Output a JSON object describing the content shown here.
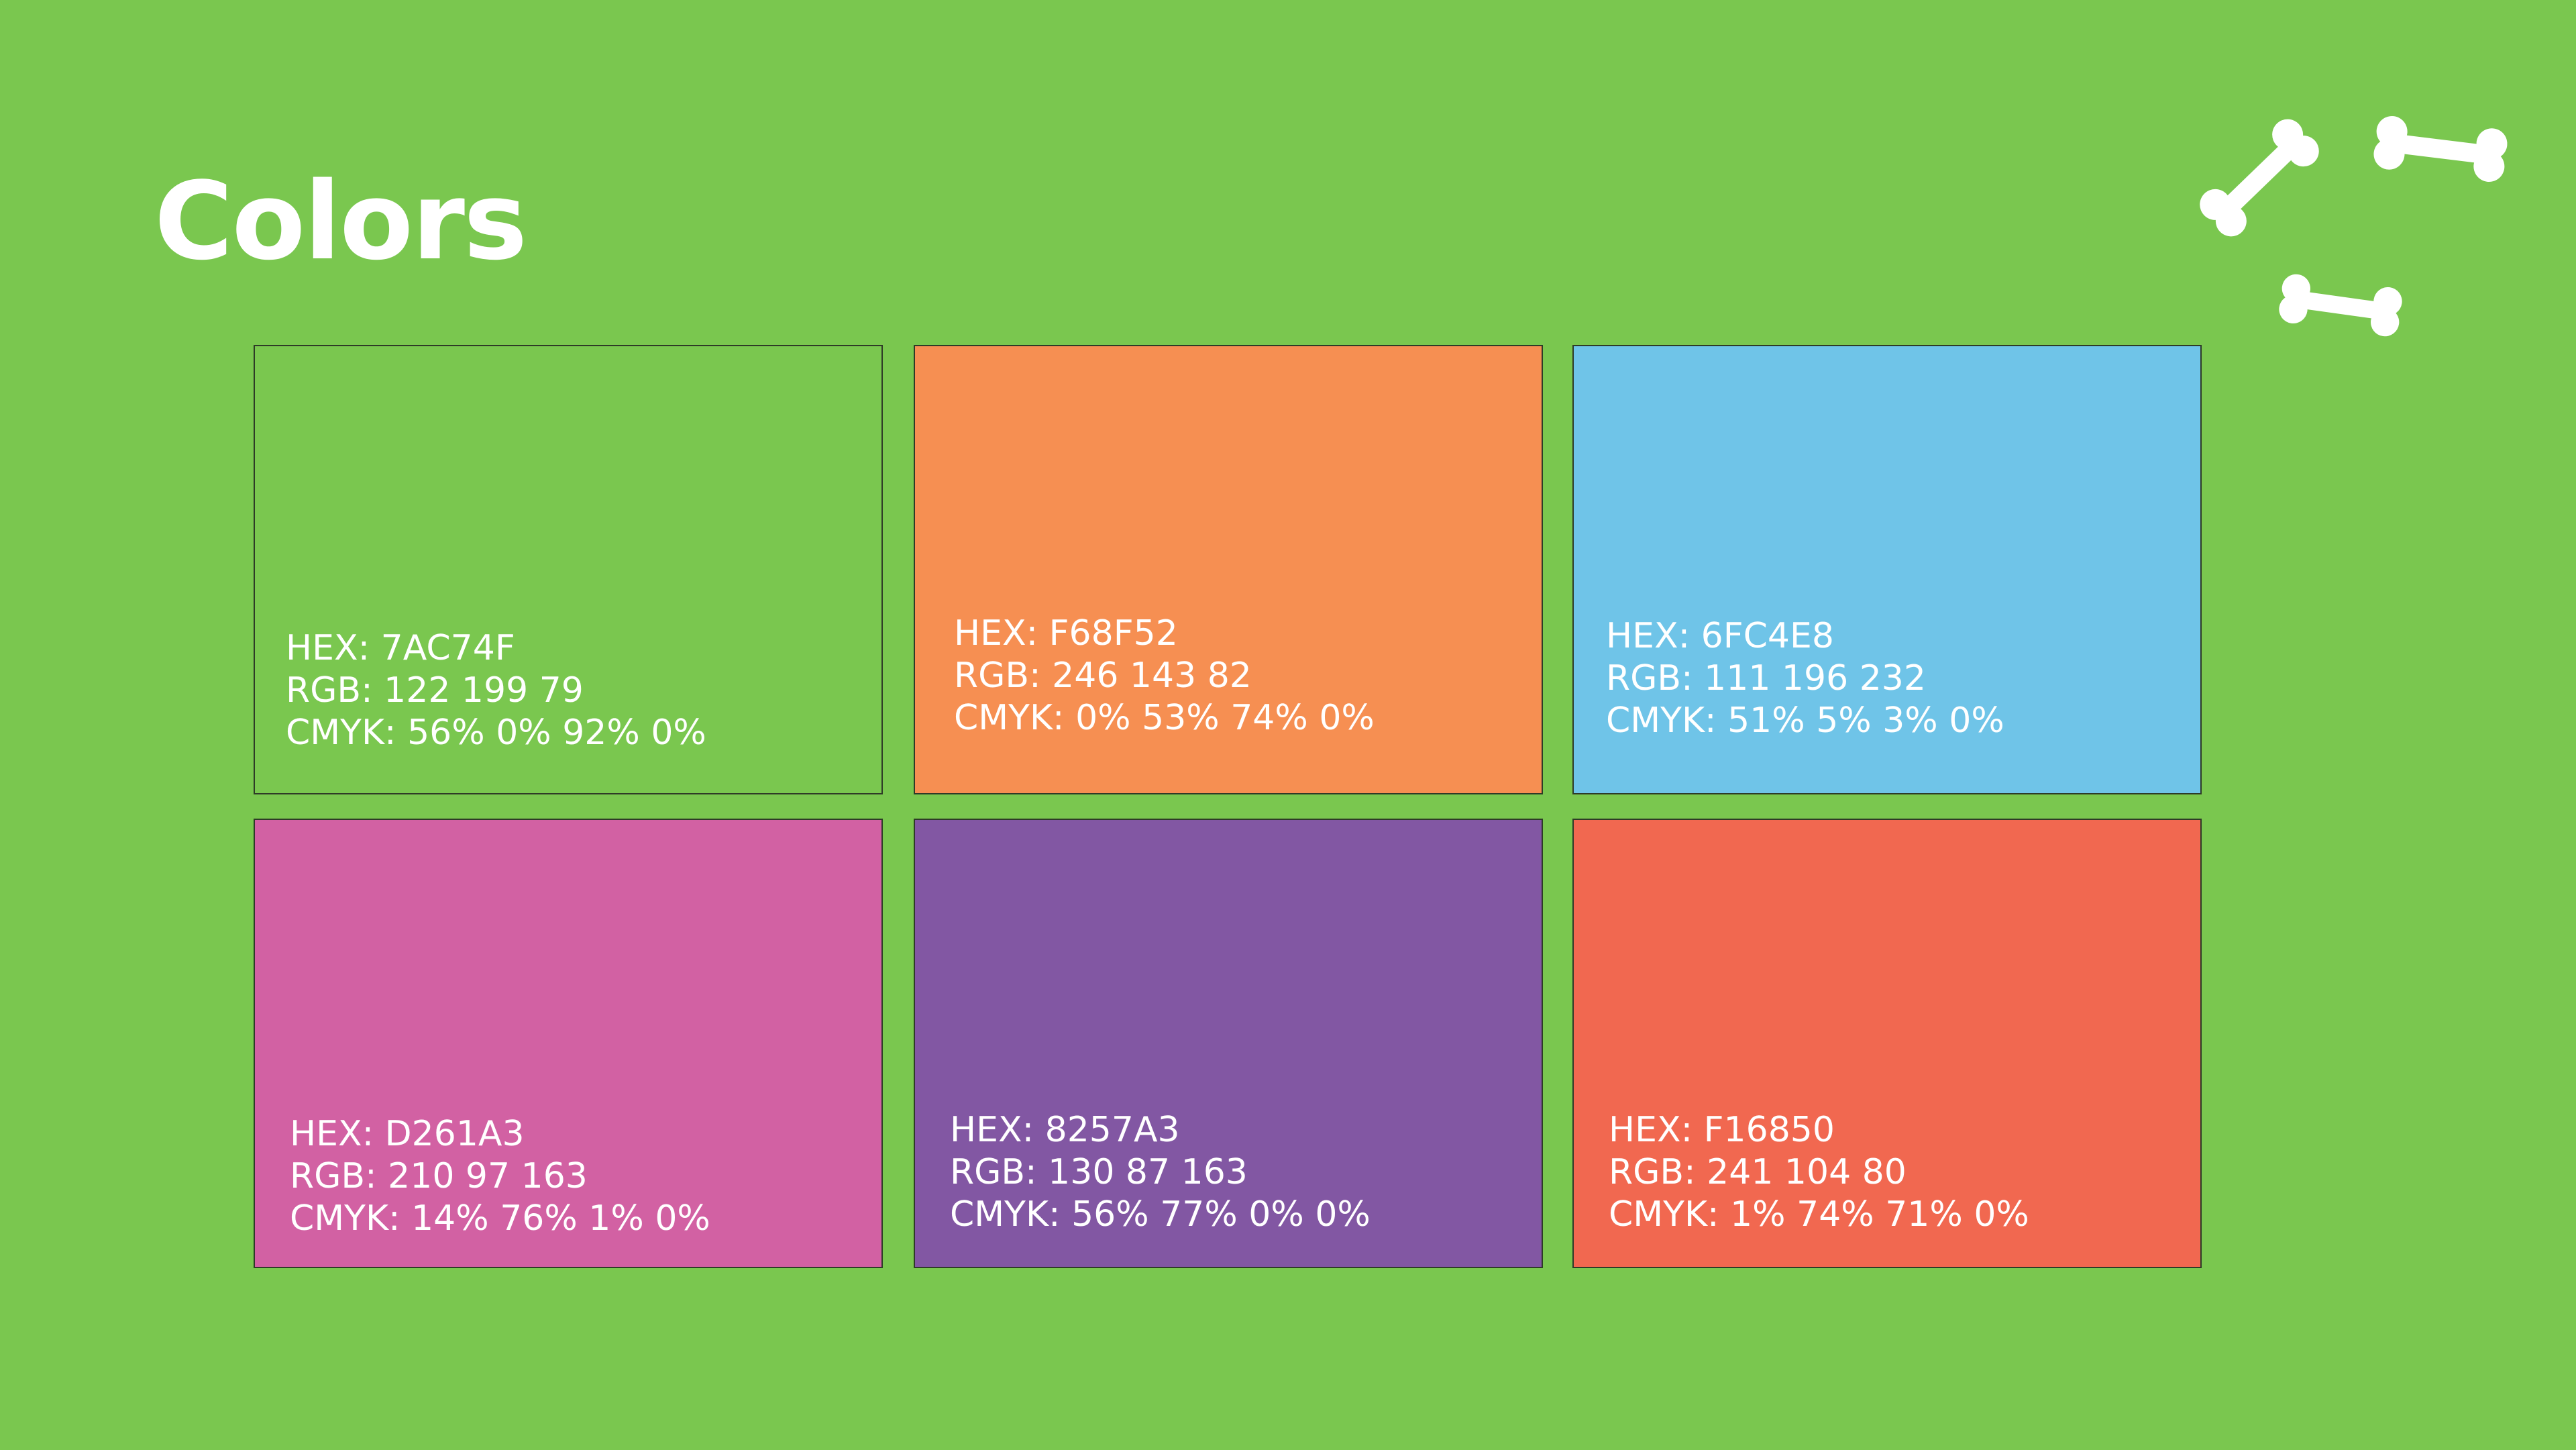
{
  "page_title": "Colors",
  "swatches": [
    {
      "hex": "#7AC74F",
      "hex_label": "HEX: 7AC74F",
      "rgb_label": "RGB: 122 199 79",
      "cmyk_label": "CMYK: 56% 0% 92% 0%"
    },
    {
      "hex": "#F68F52",
      "hex_label": "HEX: F68F52",
      "rgb_label": "RGB: 246 143 82",
      "cmyk_label": "CMYK: 0% 53% 74% 0%"
    },
    {
      "hex": "#6FC4E8",
      "hex_label": "HEX: 6FC4E8",
      "rgb_label": "RGB: 111 196 232",
      "cmyk_label": "CMYK: 51% 5% 3% 0%"
    },
    {
      "hex": "#D261A3",
      "hex_label": "HEX: D261A3",
      "rgb_label": "RGB: 210 97 163",
      "cmyk_label": "CMYK: 14% 76% 1% 0%"
    },
    {
      "hex": "#8257A3",
      "hex_label": "HEX: 8257A3",
      "rgb_label": "RGB: 130 87 163",
      "cmyk_label": "CMYK: 56% 77% 0% 0%"
    },
    {
      "hex": "#F16850",
      "hex_label": "HEX: F16850",
      "rgb_label": "RGB: 241 104 80",
      "cmyk_label": "CMYK: 1% 74% 71% 0%"
    }
  ],
  "decoration": {
    "icon": "bone-icon",
    "color": "#FFFFFF"
  }
}
